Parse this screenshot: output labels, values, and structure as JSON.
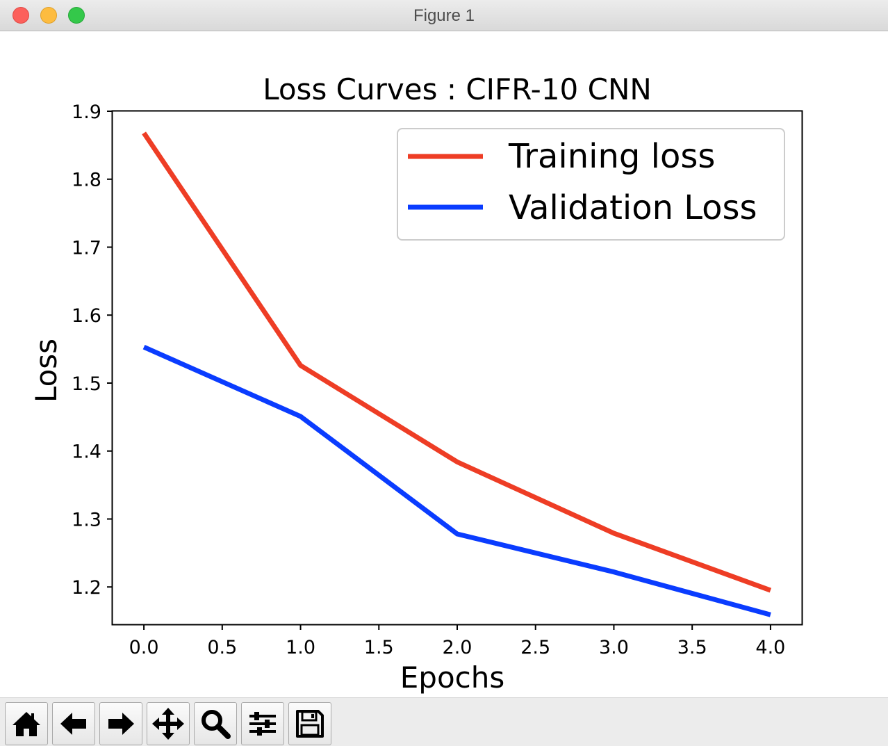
{
  "window": {
    "title": "Figure 1"
  },
  "toolbar": {
    "buttons": [
      {
        "name": "home-button",
        "icon": "home-icon"
      },
      {
        "name": "back-button",
        "icon": "arrow-left-icon"
      },
      {
        "name": "forward-button",
        "icon": "arrow-right-icon"
      },
      {
        "name": "pan-button",
        "icon": "move-icon"
      },
      {
        "name": "zoom-button",
        "icon": "magnifier-icon"
      },
      {
        "name": "configure-subplots-button",
        "icon": "sliders-icon"
      },
      {
        "name": "save-button",
        "icon": "floppy-disk-icon"
      }
    ]
  },
  "chart_data": {
    "type": "line",
    "title": "Loss Curves : CIFR-10 CNN",
    "xlabel": "Epochs",
    "ylabel": "Loss",
    "xlim": [
      -0.2,
      4.2
    ],
    "ylim": [
      1.145,
      1.9
    ],
    "xticks": [
      0.0,
      0.5,
      1.0,
      1.5,
      2.0,
      2.5,
      3.0,
      3.5,
      4.0
    ],
    "xtick_labels": [
      "0.0",
      "0.5",
      "1.0",
      "1.5",
      "2.0",
      "2.5",
      "3.0",
      "3.5",
      "4.0"
    ],
    "yticks": [
      1.2,
      1.3,
      1.4,
      1.5,
      1.6,
      1.7,
      1.8,
      1.9
    ],
    "ytick_labels": [
      "1.2",
      "1.3",
      "1.4",
      "1.5",
      "1.6",
      "1.7",
      "1.8",
      "1.9"
    ],
    "grid": false,
    "legend_position": "top-right",
    "x": [
      0,
      1,
      2,
      3,
      4
    ],
    "series": [
      {
        "name": "Training loss",
        "color": "#ee3d25",
        "values": [
          1.868,
          1.526,
          1.384,
          1.279,
          1.195
        ]
      },
      {
        "name": "Validation Loss",
        "color": "#0a3cff",
        "values": [
          1.553,
          1.451,
          1.278,
          1.222,
          1.159
        ]
      }
    ]
  }
}
